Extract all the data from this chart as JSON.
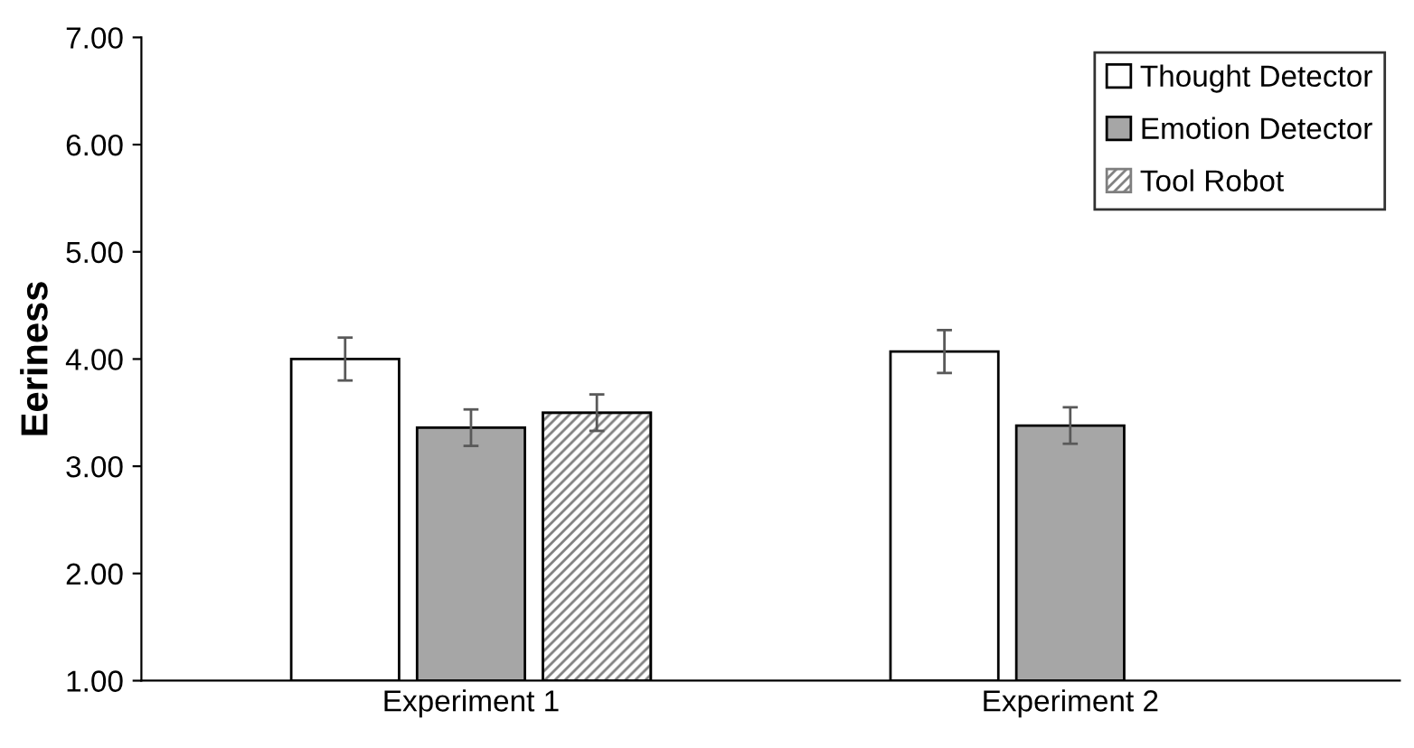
{
  "chart_data": {
    "type": "bar",
    "ylabel": "Eeriness",
    "categories": [
      "Experiment 1",
      "Experiment 2"
    ],
    "series": [
      {
        "name": "Thought Detector",
        "color": "#ffffff",
        "values": [
          4.0,
          4.07
        ],
        "errors": [
          0.2,
          0.2
        ]
      },
      {
        "name": "Emotion Detector",
        "color": "#a6a6a6",
        "values": [
          3.36,
          3.38
        ],
        "errors": [
          0.17,
          0.17
        ]
      },
      {
        "name": "Tool Robot",
        "color": "#7f7f7f",
        "values": [
          3.5,
          null
        ],
        "errors": [
          0.17,
          null
        ]
      }
    ],
    "ylim": [
      1,
      7
    ],
    "yticks": [
      {
        "value": 1,
        "label": "1.00"
      },
      {
        "value": 2,
        "label": "2.00"
      },
      {
        "value": 3,
        "label": "3.00"
      },
      {
        "value": 4,
        "label": "4.00"
      },
      {
        "value": 5,
        "label": "5.00"
      },
      {
        "value": 6,
        "label": "6.00"
      },
      {
        "value": 7,
        "label": "7.00"
      }
    ],
    "grid": false,
    "legend": "top right"
  }
}
